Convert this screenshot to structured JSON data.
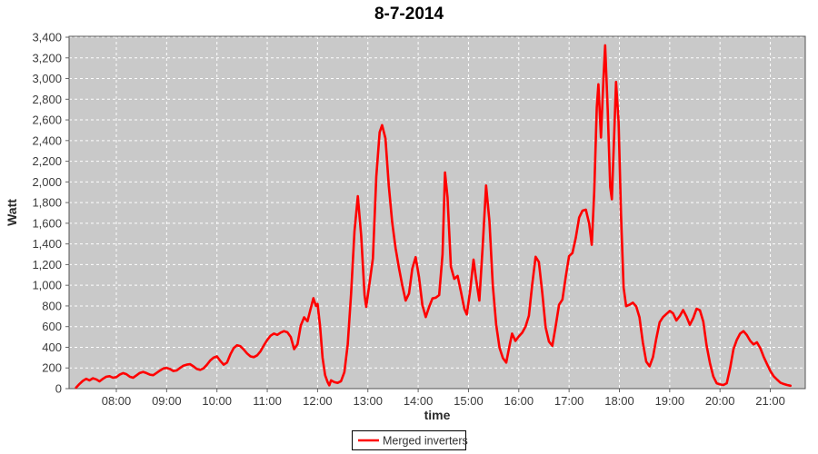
{
  "window": {
    "title": "8-7-2014"
  },
  "colors": {
    "line": "#ff0000",
    "plot_background": "#c9c9c9",
    "gridline": "#ffffff",
    "plot_border": "#545454",
    "tick_mark": "#666666",
    "tick_label": "#3b3b3b",
    "outer_background": "#ffffff",
    "legend_border": "#000000",
    "legend_background": "#ffffff"
  },
  "legend": {
    "items": [
      {
        "label": "Merged inverters",
        "swatch": "red-line-icon",
        "color": "#ff0000"
      }
    ]
  },
  "chart_data": {
    "type": "line",
    "title": "8-7-2014",
    "xlabel": "time",
    "ylabel": "Watt",
    "legend_position": "bottom-center",
    "grid": "white dashed gridlines on gray plot, hourly x-grid, 200 W y-grid",
    "x_tick_labels": [
      "08:00",
      "09:00",
      "10:00",
      "11:00",
      "12:00",
      "13:00",
      "14:00",
      "15:00",
      "16:00",
      "17:00",
      "18:00",
      "19:00",
      "20:00",
      "21:00"
    ],
    "y_ticks": [
      0,
      200,
      400,
      600,
      800,
      1000,
      1200,
      1400,
      1600,
      1800,
      2000,
      2200,
      2400,
      2600,
      2800,
      3000,
      3200,
      3400
    ],
    "ylim": [
      0,
      3410
    ],
    "xlim_time": [
      "07:04",
      "21:42"
    ],
    "series": [
      {
        "name": "Merged inverters",
        "color": "#ff0000",
        "points": [
          [
            "07:12",
            10
          ],
          [
            "07:16",
            45
          ],
          [
            "07:20",
            75
          ],
          [
            "07:24",
            95
          ],
          [
            "07:28",
            80
          ],
          [
            "07:32",
            100
          ],
          [
            "07:36",
            90
          ],
          [
            "07:40",
            70
          ],
          [
            "07:44",
            95
          ],
          [
            "07:48",
            115
          ],
          [
            "07:52",
            120
          ],
          [
            "07:56",
            105
          ],
          [
            "08:00",
            112
          ],
          [
            "08:04",
            135
          ],
          [
            "08:08",
            150
          ],
          [
            "08:12",
            140
          ],
          [
            "08:16",
            115
          ],
          [
            "08:20",
            105
          ],
          [
            "08:24",
            128
          ],
          [
            "08:28",
            152
          ],
          [
            "08:32",
            162
          ],
          [
            "08:36",
            150
          ],
          [
            "08:40",
            135
          ],
          [
            "08:44",
            130
          ],
          [
            "08:48",
            152
          ],
          [
            "08:52",
            175
          ],
          [
            "08:56",
            195
          ],
          [
            "09:00",
            200
          ],
          [
            "09:04",
            190
          ],
          [
            "09:08",
            170
          ],
          [
            "09:12",
            176
          ],
          [
            "09:16",
            200
          ],
          [
            "09:20",
            222
          ],
          [
            "09:24",
            232
          ],
          [
            "09:28",
            236
          ],
          [
            "09:32",
            215
          ],
          [
            "09:36",
            190
          ],
          [
            "09:40",
            182
          ],
          [
            "09:44",
            196
          ],
          [
            "09:48",
            230
          ],
          [
            "09:52",
            272
          ],
          [
            "09:56",
            300
          ],
          [
            "10:00",
            312
          ],
          [
            "10:04",
            268
          ],
          [
            "10:08",
            232
          ],
          [
            "10:12",
            252
          ],
          [
            "10:16",
            332
          ],
          [
            "10:20",
            392
          ],
          [
            "10:24",
            420
          ],
          [
            "10:28",
            410
          ],
          [
            "10:32",
            378
          ],
          [
            "10:36",
            340
          ],
          [
            "10:40",
            312
          ],
          [
            "10:44",
            305
          ],
          [
            "10:48",
            322
          ],
          [
            "10:52",
            362
          ],
          [
            "10:56",
            420
          ],
          [
            "11:00",
            472
          ],
          [
            "11:04",
            512
          ],
          [
            "11:08",
            532
          ],
          [
            "11:12",
            520
          ],
          [
            "11:16",
            542
          ],
          [
            "11:20",
            556
          ],
          [
            "11:24",
            545
          ],
          [
            "11:28",
            500
          ],
          [
            "11:32",
            382
          ],
          [
            "11:36",
            430
          ],
          [
            "11:40",
            610
          ],
          [
            "11:44",
            690
          ],
          [
            "11:48",
            652
          ],
          [
            "11:52",
            780
          ],
          [
            "11:55",
            875
          ],
          [
            "11:58",
            800
          ],
          [
            "12:00",
            820
          ],
          [
            "12:03",
            600
          ],
          [
            "12:06",
            300
          ],
          [
            "12:09",
            130
          ],
          [
            "12:12",
            62
          ],
          [
            "12:14",
            32
          ],
          [
            "12:16",
            80
          ],
          [
            "12:20",
            62
          ],
          [
            "12:24",
            55
          ],
          [
            "12:28",
            72
          ],
          [
            "12:32",
            160
          ],
          [
            "12:36",
            430
          ],
          [
            "12:40",
            920
          ],
          [
            "12:44",
            1520
          ],
          [
            "12:48",
            1862
          ],
          [
            "12:52",
            1480
          ],
          [
            "12:56",
            905
          ],
          [
            "12:58",
            792
          ],
          [
            "13:02",
            1022
          ],
          [
            "13:06",
            1260
          ],
          [
            "13:10",
            2050
          ],
          [
            "13:14",
            2480
          ],
          [
            "13:17",
            2550
          ],
          [
            "13:21",
            2420
          ],
          [
            "13:25",
            1960
          ],
          [
            "13:29",
            1610
          ],
          [
            "13:33",
            1360
          ],
          [
            "13:37",
            1170
          ],
          [
            "13:41",
            1000
          ],
          [
            "13:45",
            852
          ],
          [
            "13:49",
            920
          ],
          [
            "13:53",
            1160
          ],
          [
            "13:57",
            1272
          ],
          [
            "14:01",
            1080
          ],
          [
            "14:05",
            810
          ],
          [
            "14:09",
            692
          ],
          [
            "14:13",
            790
          ],
          [
            "14:17",
            872
          ],
          [
            "14:21",
            880
          ],
          [
            "14:25",
            905
          ],
          [
            "14:29",
            1300
          ],
          [
            "14:32",
            2092
          ],
          [
            "14:35",
            1850
          ],
          [
            "14:39",
            1180
          ],
          [
            "14:43",
            1062
          ],
          [
            "14:47",
            1090
          ],
          [
            "14:51",
            940
          ],
          [
            "14:55",
            775
          ],
          [
            "14:58",
            718
          ],
          [
            "15:02",
            950
          ],
          [
            "15:06",
            1248
          ],
          [
            "15:09",
            1060
          ],
          [
            "15:13",
            852
          ],
          [
            "15:17",
            1380
          ],
          [
            "15:21",
            1965
          ],
          [
            "15:25",
            1620
          ],
          [
            "15:29",
            1000
          ],
          [
            "15:33",
            620
          ],
          [
            "15:37",
            395
          ],
          [
            "15:41",
            295
          ],
          [
            "15:45",
            252
          ],
          [
            "15:49",
            420
          ],
          [
            "15:52",
            532
          ],
          [
            "15:56",
            462
          ],
          [
            "16:00",
            505
          ],
          [
            "16:04",
            540
          ],
          [
            "16:08",
            600
          ],
          [
            "16:12",
            705
          ],
          [
            "16:16",
            1010
          ],
          [
            "16:20",
            1276
          ],
          [
            "16:24",
            1225
          ],
          [
            "16:28",
            930
          ],
          [
            "16:32",
            595
          ],
          [
            "16:36",
            455
          ],
          [
            "16:40",
            415
          ],
          [
            "16:44",
            605
          ],
          [
            "16:48",
            812
          ],
          [
            "16:52",
            862
          ],
          [
            "16:56",
            1085
          ],
          [
            "17:00",
            1282
          ],
          [
            "17:04",
            1312
          ],
          [
            "17:08",
            1460
          ],
          [
            "17:12",
            1655
          ],
          [
            "17:16",
            1722
          ],
          [
            "17:20",
            1732
          ],
          [
            "17:24",
            1595
          ],
          [
            "17:27",
            1392
          ],
          [
            "17:30",
            1905
          ],
          [
            "17:33",
            2720
          ],
          [
            "17:35",
            2945
          ],
          [
            "17:38",
            2430
          ],
          [
            "17:41",
            3010
          ],
          [
            "17:43",
            3322
          ],
          [
            "17:46",
            2705
          ],
          [
            "17:49",
            1950
          ],
          [
            "17:51",
            1832
          ],
          [
            "17:54",
            2520
          ],
          [
            "17:56",
            2968
          ],
          [
            "17:59",
            2580
          ],
          [
            "18:02",
            1680
          ],
          [
            "18:05",
            980
          ],
          [
            "18:08",
            798
          ],
          [
            "18:12",
            812
          ],
          [
            "18:16",
            832
          ],
          [
            "18:20",
            795
          ],
          [
            "18:24",
            690
          ],
          [
            "18:28",
            445
          ],
          [
            "18:32",
            262
          ],
          [
            "18:36",
            216
          ],
          [
            "18:40",
            305
          ],
          [
            "18:44",
            485
          ],
          [
            "18:48",
            642
          ],
          [
            "18:52",
            692
          ],
          [
            "18:56",
            722
          ],
          [
            "19:00",
            752
          ],
          [
            "19:04",
            728
          ],
          [
            "19:08",
            660
          ],
          [
            "19:12",
            702
          ],
          [
            "19:16",
            760
          ],
          [
            "19:20",
            698
          ],
          [
            "19:24",
            618
          ],
          [
            "19:28",
            682
          ],
          [
            "19:32",
            772
          ],
          [
            "19:36",
            758
          ],
          [
            "19:40",
            648
          ],
          [
            "19:44",
            418
          ],
          [
            "19:48",
            248
          ],
          [
            "19:52",
            118
          ],
          [
            "19:56",
            52
          ],
          [
            "20:00",
            40
          ],
          [
            "20:04",
            35
          ],
          [
            "20:08",
            52
          ],
          [
            "20:12",
            198
          ],
          [
            "20:16",
            382
          ],
          [
            "20:20",
            470
          ],
          [
            "20:24",
            532
          ],
          [
            "20:28",
            556
          ],
          [
            "20:32",
            518
          ],
          [
            "20:36",
            462
          ],
          [
            "20:40",
            428
          ],
          [
            "20:44",
            448
          ],
          [
            "20:48",
            392
          ],
          [
            "20:52",
            308
          ],
          [
            "20:56",
            238
          ],
          [
            "21:00",
            172
          ],
          [
            "21:04",
            120
          ],
          [
            "21:08",
            88
          ],
          [
            "21:12",
            58
          ],
          [
            "21:16",
            45
          ],
          [
            "21:20",
            35
          ],
          [
            "21:24",
            28
          ]
        ]
      }
    ]
  }
}
